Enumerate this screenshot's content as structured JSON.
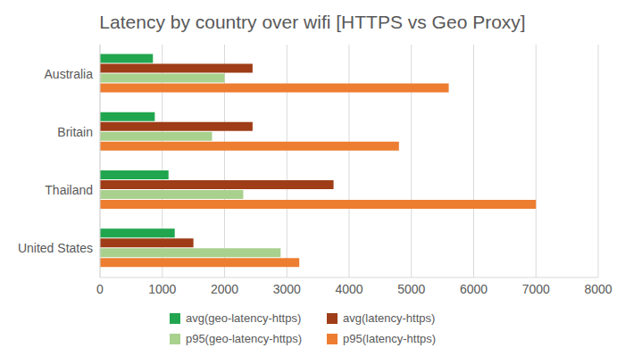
{
  "chart_data": {
    "type": "bar",
    "title": "Latency by country over wifi [HTTPS vs Geo Proxy]",
    "orientation": "horizontal",
    "categories": [
      "Australia",
      "Britain",
      "Thailand",
      "United States"
    ],
    "series": [
      {
        "name": "avg(geo-latency-https)",
        "color": "#21a64f",
        "values": [
          850,
          880,
          1100,
          1200
        ]
      },
      {
        "name": "avg(latency-https)",
        "color": "#9e3d17",
        "values": [
          2450,
          2450,
          3750,
          1500
        ]
      },
      {
        "name": "p95(geo-latency-https)",
        "color": "#a9d18e",
        "values": [
          2000,
          1800,
          2300,
          2900
        ]
      },
      {
        "name": "p95(latency-https)",
        "color": "#ed7d31",
        "values": [
          5600,
          4800,
          7000,
          3200
        ]
      }
    ],
    "xlim": [
      0,
      8000
    ],
    "xticks": [
      0,
      1000,
      2000,
      3000,
      4000,
      5000,
      6000,
      7000,
      8000
    ],
    "grid": true,
    "legend": "bottom"
  }
}
